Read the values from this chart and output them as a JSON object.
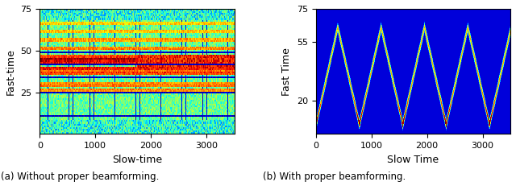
{
  "fig_width": 6.4,
  "fig_height": 2.31,
  "dpi": 100,
  "subplot_a": {
    "xlabel": "Slow-time",
    "ylabel": "Fast-time",
    "xlim": [
      0,
      3500
    ],
    "ylim": [
      0,
      75
    ],
    "xticks": [
      0,
      1000,
      2000,
      3000
    ],
    "yticks": [
      25,
      50,
      75
    ],
    "title": "(a) Without proper beamforming."
  },
  "subplot_b": {
    "xlabel": "Slow Time",
    "ylabel": "Fast Time",
    "xlim": [
      0,
      3500
    ],
    "ylim": [
      0,
      75
    ],
    "xticks": [
      0,
      1000,
      2000,
      3000
    ],
    "yticks": [
      20,
      55,
      75
    ],
    "title": "(b) With proper beamforming."
  },
  "colormap": "jet",
  "N_slow": 3500,
  "N_fast": 75
}
